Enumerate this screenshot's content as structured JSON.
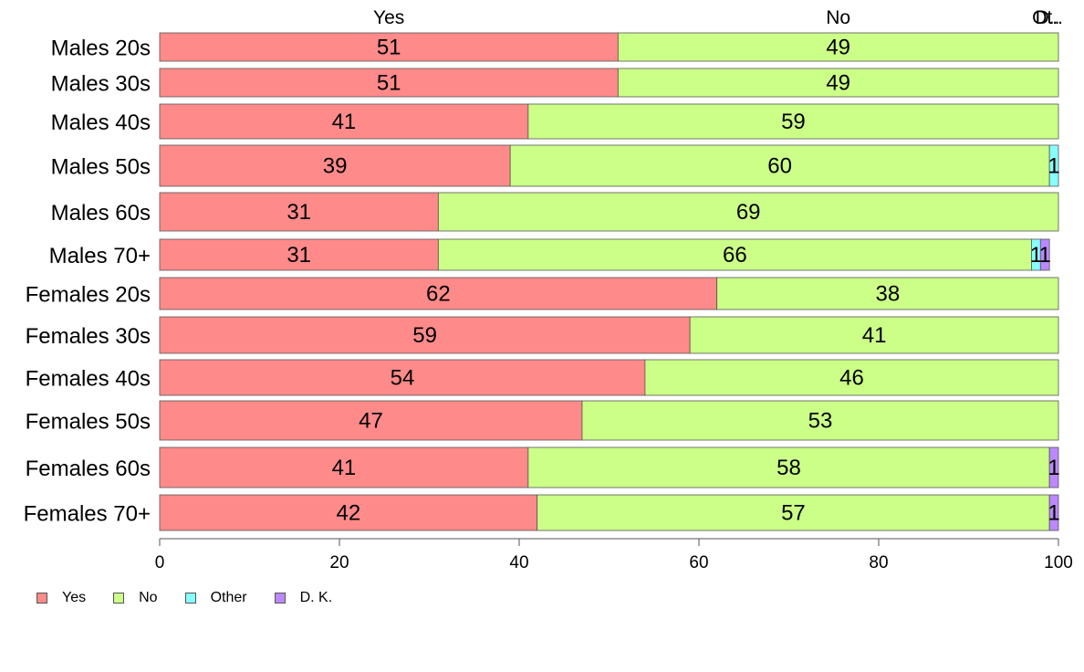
{
  "chart_data": {
    "type": "bar",
    "orientation": "horizontal",
    "stacked": true,
    "categories": [
      "Males 20s",
      "Males 30s",
      "Males 40s",
      "Males 50s",
      "Males 60s",
      "Males 70+",
      "Females 20s",
      "Females 30s",
      "Females 40s",
      "Females 50s",
      "Females 60s",
      "Females 70+"
    ],
    "series": [
      {
        "name": "Yes",
        "color": "#ff8a8a",
        "values": [
          51,
          51,
          41,
          39,
          31,
          31,
          62,
          59,
          54,
          47,
          41,
          42
        ]
      },
      {
        "name": "No",
        "color": "#ccff88",
        "values": [
          49,
          49,
          59,
          60,
          69,
          66,
          38,
          41,
          46,
          53,
          58,
          57
        ]
      },
      {
        "name": "Other",
        "color": "#88ffff",
        "values": [
          0,
          0,
          0,
          1,
          0,
          1,
          0,
          0,
          0,
          0,
          0,
          0
        ]
      },
      {
        "name": "D. K.",
        "color": "#bb88ff",
        "values": [
          0,
          0,
          0,
          0,
          0,
          1,
          0,
          0,
          0,
          0,
          1,
          1
        ]
      }
    ],
    "top_labels": [
      "Yes",
      "No",
      "Ot..",
      "D.."
    ],
    "xlim": [
      0,
      100
    ],
    "xticks": [
      0,
      20,
      40,
      60,
      80,
      100
    ],
    "xlabel": "",
    "ylabel": "",
    "grid": false,
    "legend_position": "bottom-left"
  }
}
